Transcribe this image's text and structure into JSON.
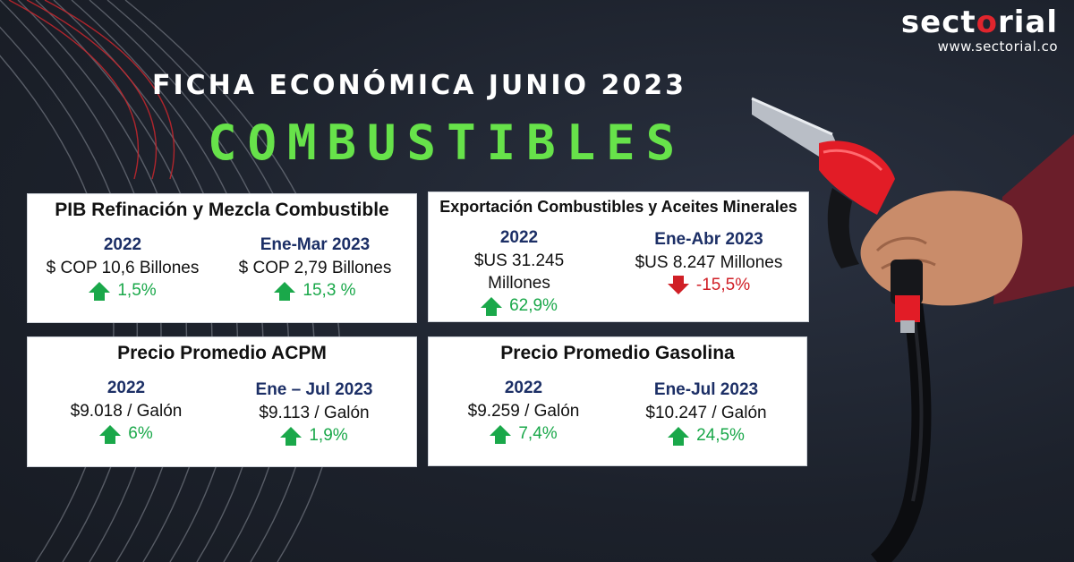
{
  "logo": {
    "pre": "sect",
    "accent": "o",
    "post": "rial",
    "url": "www.sectorial.co"
  },
  "headline": "FICHA ECONÓMICA JUNIO 2023",
  "subtitle": "COMBUSTIBLES",
  "colors": {
    "accent_green": "#67e24a",
    "up": "#1aa84a",
    "down": "#d01f26",
    "period": "#1c2f66",
    "background": "#1e2430"
  },
  "cards": {
    "pib": {
      "title": "PIB Refinación y Mezcla Combustible",
      "left": {
        "period": "2022",
        "value": "$ COP 10,6 Billones",
        "change": "1,5%",
        "direction": "up"
      },
      "right": {
        "period": "Ene-Mar 2023",
        "value": "$ COP 2,79 Billones",
        "change": "15,3 %",
        "direction": "up"
      }
    },
    "exports": {
      "title": "Exportación Combustibles y Aceites Minerales",
      "left": {
        "period": "2022",
        "value_line1": "$US 31.245",
        "value_line2": "Millones",
        "change": "62,9%",
        "direction": "up"
      },
      "right": {
        "period": "Ene-Abr 2023",
        "value": "$US 8.247 Millones",
        "change": "-15,5%",
        "direction": "down"
      }
    },
    "acpm": {
      "title": "Precio Promedio ACPM",
      "left": {
        "period": "2022",
        "value": "$9.018 / Galón",
        "change": "6%",
        "direction": "up"
      },
      "right": {
        "period": "Ene – Jul 2023",
        "value": "$9.113 / Galón",
        "change": "1,9%",
        "direction": "up"
      }
    },
    "gasolina": {
      "title": "Precio Promedio Gasolina",
      "left": {
        "period": "2022",
        "value": "$9.259 / Galón",
        "change": "7,4%",
        "direction": "up"
      },
      "right": {
        "period": "Ene-Jul 2023",
        "value": "$10.247 / Galón",
        "change": "24,5%",
        "direction": "up"
      }
    }
  },
  "icons": {
    "up": "arrow-up-icon",
    "down": "arrow-down-icon",
    "illustration": "fuel-nozzle-icon"
  }
}
